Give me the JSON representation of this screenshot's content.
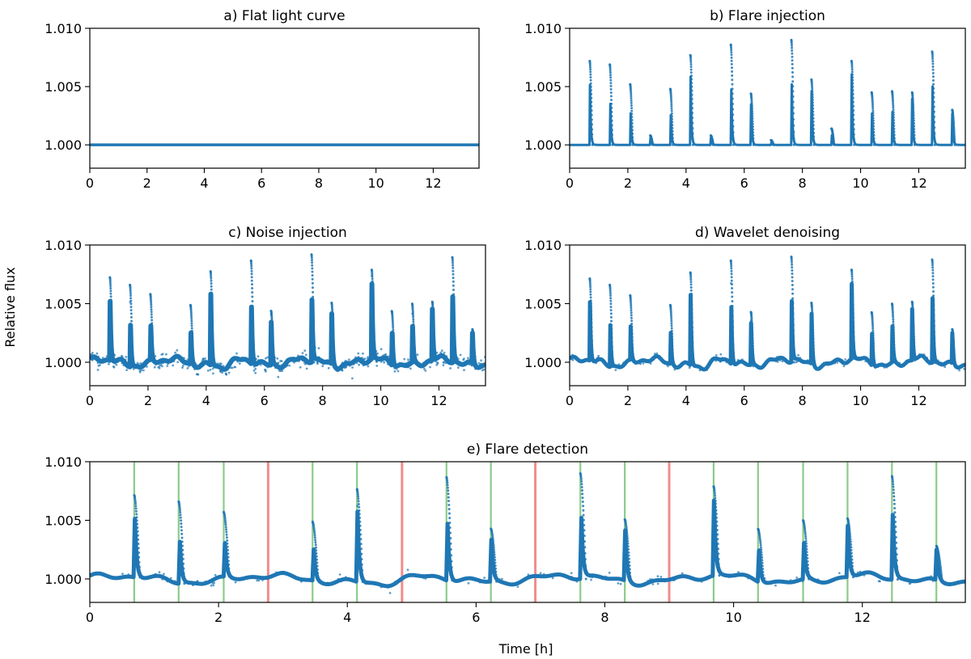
{
  "figure": {
    "ylabel": "Relative flux",
    "xlabel": "Time [h]"
  },
  "chart_data": [
    {
      "id": "a",
      "type": "line",
      "title": "a) Flat light curve",
      "xlim": [
        0,
        13.6
      ],
      "ylim": [
        0.998,
        1.01
      ],
      "xticks": [
        0,
        2,
        4,
        6,
        8,
        10,
        12
      ],
      "xtick_labels": [
        "0",
        "2",
        "4",
        "6",
        "8",
        "10",
        "12"
      ],
      "yticks": [
        1.0,
        1.005,
        1.01
      ],
      "ytick_labels": [
        "1.000",
        "1.005",
        "1.010"
      ],
      "series": [
        {
          "name": "flux",
          "x": [
            0,
            13.6
          ],
          "y": [
            1.0,
            1.0
          ],
          "color": "#1f77b4"
        }
      ]
    },
    {
      "id": "b",
      "type": "scatter",
      "title": "b) Flare injection",
      "xlim": [
        0,
        13.6
      ],
      "ylim": [
        0.998,
        1.01
      ],
      "xticks": [
        0,
        2,
        4,
        6,
        8,
        10,
        12
      ],
      "xtick_labels": [
        "0",
        "2",
        "4",
        "6",
        "8",
        "10",
        "12"
      ],
      "yticks": [
        1.0,
        1.005,
        1.01
      ],
      "ytick_labels": [
        "1.000",
        "1.005",
        "1.010"
      ],
      "noise": "none",
      "flares": [
        {
          "t": 0.69,
          "peak": 1.0072
        },
        {
          "t": 1.38,
          "peak": 1.0069
        },
        {
          "t": 2.08,
          "peak": 1.0052
        },
        {
          "t": 2.77,
          "peak": 1.0008
        },
        {
          "t": 3.46,
          "peak": 1.0048
        },
        {
          "t": 4.15,
          "peak": 1.0077
        },
        {
          "t": 4.85,
          "peak": 1.0008
        },
        {
          "t": 5.54,
          "peak": 1.0086
        },
        {
          "t": 6.23,
          "peak": 1.0044
        },
        {
          "t": 6.92,
          "peak": 1.0004
        },
        {
          "t": 7.62,
          "peak": 1.009
        },
        {
          "t": 8.31,
          "peak": 1.0056
        },
        {
          "t": 9.0,
          "peak": 1.0014
        },
        {
          "t": 9.69,
          "peak": 1.0072
        },
        {
          "t": 10.38,
          "peak": 1.0045
        },
        {
          "t": 11.08,
          "peak": 1.0046
        },
        {
          "t": 11.77,
          "peak": 1.0045
        },
        {
          "t": 12.46,
          "peak": 1.008
        },
        {
          "t": 13.15,
          "peak": 1.003
        }
      ]
    },
    {
      "id": "c",
      "type": "scatter",
      "title": "c) Noise injection",
      "xlim": [
        0,
        13.6
      ],
      "ylim": [
        0.998,
        1.01
      ],
      "xticks": [
        0,
        2,
        4,
        6,
        8,
        10,
        12
      ],
      "xtick_labels": [
        "0",
        "2",
        "4",
        "6",
        "8",
        "10",
        "12"
      ],
      "yticks": [
        1.0,
        1.005,
        1.01
      ],
      "ytick_labels": [
        "1.000",
        "1.005",
        "1.010"
      ],
      "noise": "strong",
      "flares": [
        {
          "t": 0.69,
          "peak": 1.0071
        },
        {
          "t": 1.38,
          "peak": 1.007
        },
        {
          "t": 2.08,
          "peak": 1.0056
        },
        {
          "t": 3.46,
          "peak": 1.005
        },
        {
          "t": 4.15,
          "peak": 1.008
        },
        {
          "t": 5.54,
          "peak": 1.0088
        },
        {
          "t": 6.23,
          "peak": 1.0046
        },
        {
          "t": 7.62,
          "peak": 1.0092
        },
        {
          "t": 8.31,
          "peak": 1.0052
        },
        {
          "t": 9.69,
          "peak": 1.0076
        },
        {
          "t": 10.38,
          "peak": 1.0046
        },
        {
          "t": 11.08,
          "peak": 1.005
        },
        {
          "t": 11.77,
          "peak": 1.005
        },
        {
          "t": 12.46,
          "peak": 1.009
        },
        {
          "t": 13.15,
          "peak": 1.0029
        }
      ]
    },
    {
      "id": "d",
      "type": "scatter",
      "title": "d) Wavelet denoising",
      "xlim": [
        0,
        13.6
      ],
      "ylim": [
        0.998,
        1.01
      ],
      "xticks": [
        0,
        2,
        4,
        6,
        8,
        10,
        12
      ],
      "xtick_labels": [
        "0",
        "2",
        "4",
        "6",
        "8",
        "10",
        "12"
      ],
      "yticks": [
        1.0,
        1.005,
        1.01
      ],
      "ytick_labels": [
        "1.000",
        "1.005",
        "1.010"
      ],
      "noise": "weak",
      "flares": [
        {
          "t": 0.69,
          "peak": 1.007
        },
        {
          "t": 1.38,
          "peak": 1.007
        },
        {
          "t": 2.08,
          "peak": 1.0055
        },
        {
          "t": 3.46,
          "peak": 1.005
        },
        {
          "t": 4.15,
          "peak": 1.0079
        },
        {
          "t": 5.54,
          "peak": 1.0088
        },
        {
          "t": 6.23,
          "peak": 1.0045
        },
        {
          "t": 7.62,
          "peak": 1.009
        },
        {
          "t": 8.31,
          "peak": 1.0052
        },
        {
          "t": 9.69,
          "peak": 1.0076
        },
        {
          "t": 10.38,
          "peak": 1.0045
        },
        {
          "t": 11.08,
          "peak": 1.005
        },
        {
          "t": 11.77,
          "peak": 1.005
        },
        {
          "t": 12.46,
          "peak": 1.0088
        },
        {
          "t": 13.15,
          "peak": 1.0029
        }
      ]
    },
    {
      "id": "e",
      "type": "scatter",
      "title": "e) Flare detection",
      "xlim": [
        0,
        13.6
      ],
      "ylim": [
        0.998,
        1.01
      ],
      "xticks": [
        0,
        2,
        4,
        6,
        8,
        10,
        12
      ],
      "xtick_labels": [
        "0",
        "2",
        "4",
        "6",
        "8",
        "10",
        "12"
      ],
      "yticks": [
        1.0,
        1.005,
        1.01
      ],
      "ytick_labels": [
        "1.000",
        "1.005",
        "1.010"
      ],
      "noise": "weak",
      "detected_color": "#2ca02c",
      "missed_color": "#f08080",
      "flares": [
        {
          "t": 0.69,
          "peak": 1.007
        },
        {
          "t": 1.38,
          "peak": 1.007
        },
        {
          "t": 2.08,
          "peak": 1.0055
        },
        {
          "t": 3.46,
          "peak": 1.005
        },
        {
          "t": 4.15,
          "peak": 1.0079
        },
        {
          "t": 5.54,
          "peak": 1.0088
        },
        {
          "t": 6.23,
          "peak": 1.0045
        },
        {
          "t": 7.62,
          "peak": 1.009
        },
        {
          "t": 8.31,
          "peak": 1.0052
        },
        {
          "t": 9.69,
          "peak": 1.0076
        },
        {
          "t": 10.38,
          "peak": 1.0045
        },
        {
          "t": 11.08,
          "peak": 1.005
        },
        {
          "t": 11.77,
          "peak": 1.005
        },
        {
          "t": 12.46,
          "peak": 1.0088
        },
        {
          "t": 13.15,
          "peak": 1.0029
        }
      ],
      "detected": [
        0.69,
        1.38,
        2.08,
        3.46,
        4.15,
        5.54,
        6.23,
        7.62,
        8.31,
        9.69,
        10.38,
        11.08,
        11.77,
        12.46,
        13.15
      ],
      "missed": [
        2.77,
        4.85,
        6.92,
        9.0
      ]
    }
  ]
}
